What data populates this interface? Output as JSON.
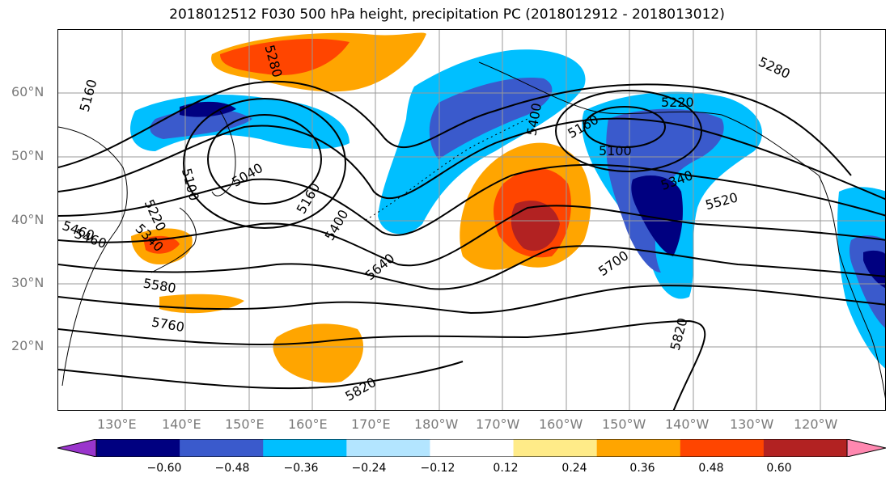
{
  "title": "2018012512 F030 500 hPa height, precipitation PC (2018012912 - 2018013012)",
  "lat_labels": [
    "60°N",
    "50°N",
    "40°N",
    "30°N",
    "20°N"
  ],
  "lon_labels": [
    "130°E",
    "140°E",
    "150°E",
    "160°E",
    "170°E",
    "180°W",
    "170°W",
    "160°W",
    "150°W",
    "140°W",
    "130°W",
    "120°W"
  ],
  "contour_labels": [
    "5280",
    "5160",
    "5280",
    "5220",
    "5160",
    "5100",
    "5400",
    "5040",
    "5100",
    "5160",
    "5400",
    "5460",
    "5520",
    "5640",
    "5700",
    "5580",
    "5760",
    "5820",
    "5820",
    "5340",
    "5220",
    "5460",
    "5340"
  ],
  "colorbar": {
    "colors": [
      "#9a35cc",
      "#000080",
      "#3a5acc",
      "#00bfff",
      "#b3e5ff",
      "#ffffff",
      "#ffeb88",
      "#ffa500",
      "#ff4500",
      "#b22222",
      "#ff88b0"
    ],
    "tick_labels": [
      "−0.60",
      "−0.48",
      "−0.36",
      "−0.24",
      "−0.12",
      "0.12",
      "0.24",
      "0.36",
      "0.48",
      "0.60"
    ]
  },
  "legend": {
    "positive_colors": [
      "#ffeb88",
      "#ffa500",
      "#ff4500",
      "#b22222"
    ],
    "negative_colors": [
      "#b3e5ff",
      "#00bfff",
      "#3a5acc",
      "#000080"
    ]
  }
}
